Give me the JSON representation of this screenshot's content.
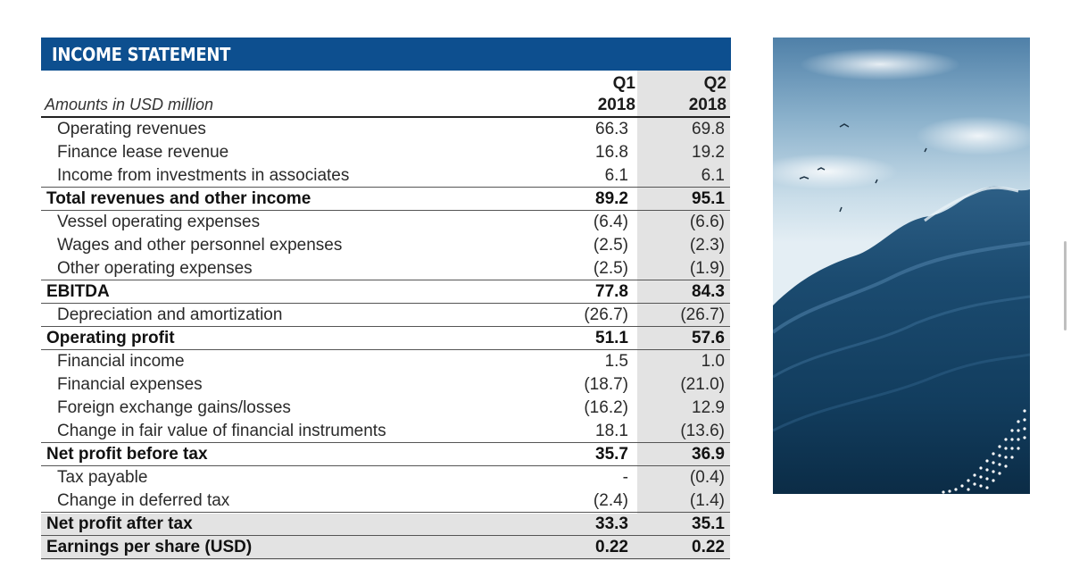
{
  "title": "INCOME STATEMENT",
  "units_label": "Amounts in USD million",
  "columns": [
    {
      "period": "Q1",
      "year": "2018"
    },
    {
      "period": "Q2",
      "year": "2018"
    }
  ],
  "rows": [
    {
      "label": "Operating revenues",
      "q1": "66.3",
      "q2": "69.8",
      "bold": false
    },
    {
      "label": "Finance lease revenue",
      "q1": "16.8",
      "q2": "19.2",
      "bold": false
    },
    {
      "label": "Income from investments in associates",
      "q1": "6.1",
      "q2": "6.1",
      "bold": false
    },
    {
      "label": "Total revenues and other income",
      "q1": "89.2",
      "q2": "95.1",
      "bold": true
    },
    {
      "label": "Vessel operating expenses",
      "q1": "(6.4)",
      "q2": "(6.6)",
      "bold": false
    },
    {
      "label": "Wages and other personnel expenses",
      "q1": "(2.5)",
      "q2": "(2.3)",
      "bold": false
    },
    {
      "label": "Other operating expenses",
      "q1": "(2.5)",
      "q2": "(1.9)",
      "bold": false
    },
    {
      "label": "EBITDA",
      "q1": "77.8",
      "q2": "84.3",
      "bold": true
    },
    {
      "label": "Depreciation and amortization",
      "q1": "(26.7)",
      "q2": "(26.7)",
      "bold": false
    },
    {
      "label": "Operating profit",
      "q1": "51.1",
      "q2": "57.6",
      "bold": true
    },
    {
      "label": "Financial income",
      "q1": "1.5",
      "q2": "1.0",
      "bold": false
    },
    {
      "label": "Financial expenses",
      "q1": "(18.7)",
      "q2": "(21.0)",
      "bold": false
    },
    {
      "label": "Foreign exchange gains/losses",
      "q1": "(16.2)",
      "q2": "12.9",
      "bold": false
    },
    {
      "label": "Change in fair value of financial instruments",
      "q1": "18.1",
      "q2": "(13.6)",
      "bold": false
    },
    {
      "label": "Net profit before tax",
      "q1": "35.7",
      "q2": "36.9",
      "bold": true
    },
    {
      "label": "Tax payable",
      "q1": "-",
      "q2": "(0.4)",
      "bold": false
    },
    {
      "label": "Change in deferred tax",
      "q1": "(2.4)",
      "q2": "(1.4)",
      "bold": false
    },
    {
      "label": "Net profit after tax",
      "q1": "33.3",
      "q2": "35.1",
      "bold": true
    },
    {
      "label": "Earnings per share (USD)",
      "q1": "0.22",
      "q2": "0.22",
      "bold": true
    }
  ],
  "colors": {
    "header_bg": "#0d4f8f",
    "q2_shade": "#e3e3e3"
  }
}
